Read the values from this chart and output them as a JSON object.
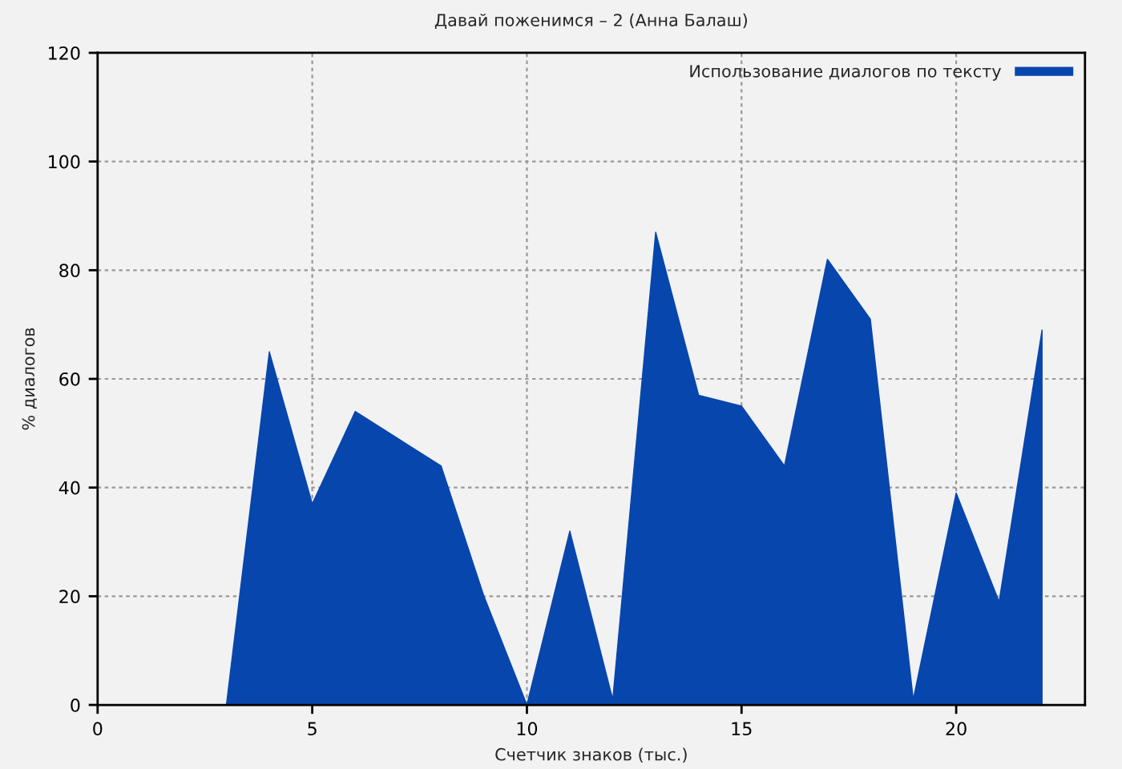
{
  "chart_data": {
    "type": "area",
    "title": "Давай поженимся – 2 (Анна Балаш)",
    "xlabel": "Счетчик знаков (тыс.)",
    "ylabel": "% диалогов",
    "x": [
      3,
      4,
      5,
      6,
      7,
      8,
      9,
      10,
      11,
      12,
      13,
      14,
      15,
      16,
      17,
      18,
      19,
      20,
      21,
      22
    ],
    "series": [
      {
        "name": "Использование диалогов по тексту",
        "color": "#0746ad",
        "values": [
          0,
          65,
          37,
          54,
          49,
          44,
          20,
          0,
          32,
          1,
          87,
          57,
          55,
          44,
          82,
          71,
          1,
          39,
          19,
          69
        ]
      }
    ],
    "xlim": [
      0,
      23
    ],
    "ylim": [
      0,
      120
    ],
    "xticks": [
      0,
      5,
      10,
      15,
      20
    ],
    "yticks": [
      0,
      20,
      40,
      60,
      80,
      100,
      120
    ],
    "grid": true,
    "legend": "top right"
  }
}
